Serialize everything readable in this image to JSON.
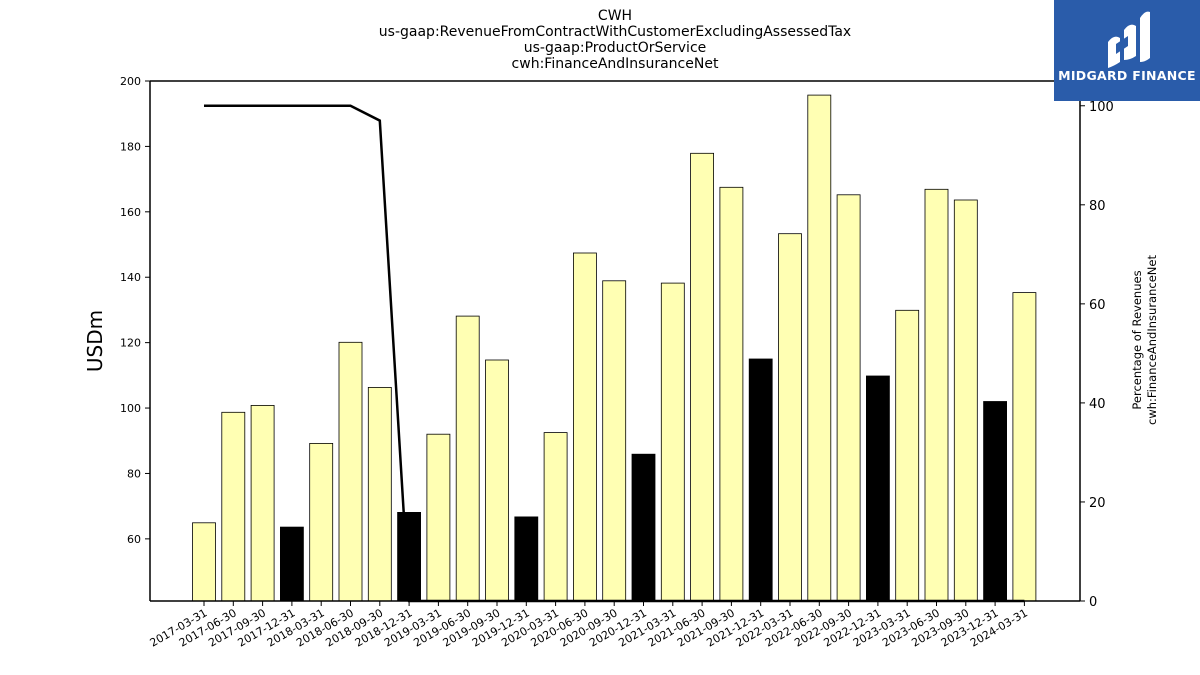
{
  "title_lines": [
    "CWH",
    "us-gaap:RevenueFromContractWithCustomerExcludingAssessedTax",
    "us-gaap:ProductOrService",
    "cwh:FinanceAndInsuranceNet"
  ],
  "logo": {
    "text": "MIDGARD FINANCE",
    "color": "#2a5caa"
  },
  "chart_data": {
    "type": "bar",
    "categories": [
      "2017-03-31",
      "2017-06-30",
      "2017-09-30",
      "2017-12-31",
      "2018-03-31",
      "2018-06-30",
      "2018-09-30",
      "2018-12-31",
      "2019-03-31",
      "2019-06-30",
      "2019-09-30",
      "2019-12-31",
      "2020-03-31",
      "2020-06-30",
      "2020-09-30",
      "2020-12-31",
      "2021-03-31",
      "2021-06-30",
      "2021-09-30",
      "2021-12-31",
      "2022-03-31",
      "2022-06-30",
      "2022-09-30",
      "2022-12-31",
      "2023-03-31",
      "2023-06-30",
      "2023-09-30",
      "2023-12-31",
      "2024-03-31"
    ],
    "series": [
      {
        "type": "bar",
        "axis": "left",
        "values": [
          64.9,
          98.7,
          100.8,
          63.6,
          89.2,
          120.1,
          106.3,
          68.1,
          92.0,
          128.1,
          114.7,
          66.7,
          92.5,
          147.4,
          138.9,
          85.9,
          138.2,
          177.9,
          167.5,
          115.0,
          153.3,
          195.7,
          165.2,
          109.8,
          129.9,
          166.9,
          163.6,
          102.0,
          135.3
        ],
        "highlighted": [
          3,
          7,
          11,
          15,
          19,
          23,
          27
        ]
      },
      {
        "type": "line",
        "axis": "right",
        "values": [
          100,
          100,
          100,
          100,
          100,
          100,
          97,
          0,
          0,
          0,
          0,
          0,
          0,
          0,
          0,
          0,
          0,
          0,
          0,
          0,
          0,
          0,
          0,
          0,
          0,
          0,
          0,
          0,
          0
        ]
      }
    ],
    "ylabel_left": "USDm",
    "ylabel_right": [
      "Percentage of Revenues",
      "cwh:FinanceAndInsuranceNet"
    ],
    "ylim_left": [
      41,
      200
    ],
    "ylim_right": [
      0,
      105
    ],
    "yticks_left": [
      60,
      80,
      100,
      120,
      140,
      160,
      180,
      200
    ],
    "yticks_right": [
      0,
      20,
      40,
      60,
      80,
      100
    ],
    "bar_color": "#ffffb3",
    "bar_highlight_color": "#000000",
    "line_color": "#000000",
    "grid": false,
    "legend": "none"
  }
}
